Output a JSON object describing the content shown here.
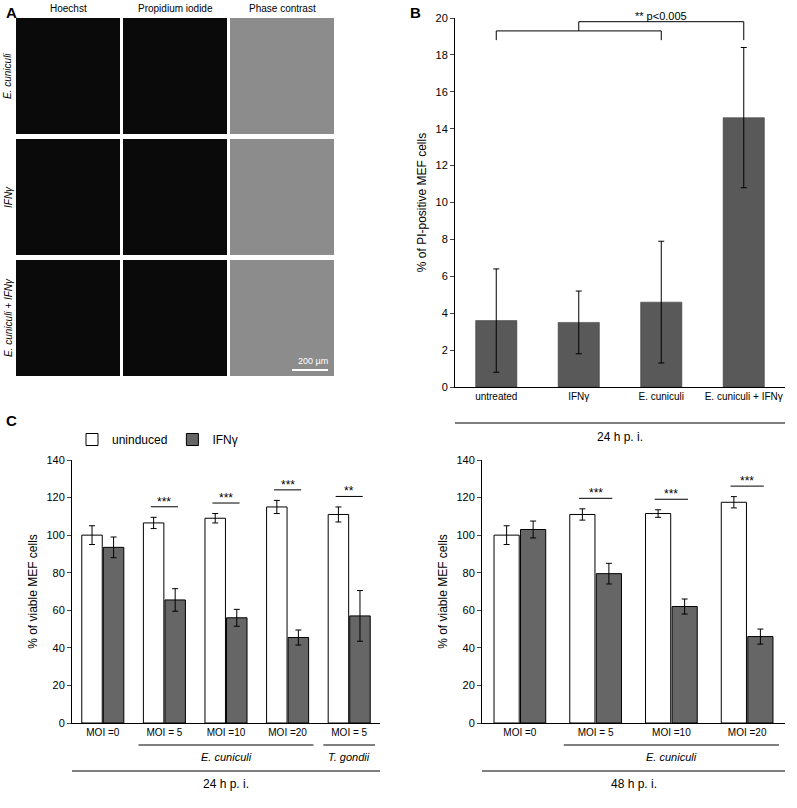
{
  "panel_labels": [
    "A",
    "B",
    "C"
  ],
  "image_panel": {
    "columns": [
      "Hoechst",
      "Propidium iodide",
      "Phase contrast"
    ],
    "rows": [
      "E. cuniculi",
      "IFNγ",
      "E. cuniculi + IFNγ"
    ],
    "scale_bar": "200 µm"
  },
  "chart_data": [
    {
      "type": "bar",
      "categories": [
        "untreated",
        "IFNγ",
        "E. cuniculi",
        "E. cuniculi + IFNγ"
      ],
      "values": [
        3.6,
        3.5,
        4.6,
        14.6
      ],
      "errors": [
        2.8,
        1.7,
        3.3,
        3.8
      ],
      "color": "#595959",
      "ylabel": "% of PI-positive MEF cells",
      "x_label": "24 h p. i.",
      "ylim": [
        0,
        20
      ],
      "yticks": [
        0,
        2,
        4,
        6,
        8,
        10,
        12,
        14,
        16,
        18,
        20
      ],
      "annotations": [
        {
          "text": "** p<0.005",
          "between": [
            [
              0,
              1,
              2
            ],
            [
              3
            ]
          ]
        }
      ]
    },
    {
      "type": "bar",
      "categories": [
        "MOI =0",
        "MOI = 5",
        "MOI =10",
        "MOI =20",
        "MOI = 5"
      ],
      "series": [
        {
          "name": "uninduced",
          "color": "#ffffff",
          "values": [
            100,
            106.5,
            109,
            115,
            111
          ],
          "errors": [
            5,
            3,
            2.5,
            3.5,
            4
          ]
        },
        {
          "name": "IFNγ",
          "color": "#666666",
          "values": [
            93.5,
            65.5,
            56,
            45.5,
            57
          ],
          "errors": [
            5.5,
            6,
            4.5,
            4,
            13.5
          ]
        }
      ],
      "significance": [
        null,
        "***",
        "***",
        "***",
        "**"
      ],
      "groups": [
        {
          "label": "E. cuniculi",
          "span": [
            1,
            3
          ]
        },
        {
          "label": "T. gondii",
          "span": [
            4,
            4
          ]
        }
      ],
      "x_label": "24 h p. i.",
      "ylabel": "% of viable MEF cells",
      "ylim": [
        0,
        140
      ],
      "yticks": [
        0,
        20,
        40,
        60,
        80,
        100,
        120,
        140
      ],
      "legend": "top left"
    },
    {
      "type": "bar",
      "categories": [
        "MOI =0",
        "MOI = 5",
        "MOI =10",
        "MOI =20"
      ],
      "series": [
        {
          "name": "uninduced",
          "color": "#ffffff",
          "values": [
            100,
            111,
            111.5,
            117.5
          ],
          "errors": [
            5,
            3,
            2,
            3
          ]
        },
        {
          "name": "IFNγ",
          "color": "#666666",
          "values": [
            103,
            79.5,
            62,
            46
          ],
          "errors": [
            4.5,
            5.5,
            4,
            4
          ]
        }
      ],
      "significance": [
        null,
        "***",
        "***",
        "***"
      ],
      "groups": [
        {
          "label": "E. cuniculi",
          "span": [
            1,
            3
          ]
        }
      ],
      "x_label": "48 h p. i.",
      "ylabel": "% of viable MEF cells",
      "ylim": [
        0,
        140
      ],
      "yticks": [
        0,
        20,
        40,
        60,
        80,
        100,
        120,
        140
      ]
    }
  ]
}
